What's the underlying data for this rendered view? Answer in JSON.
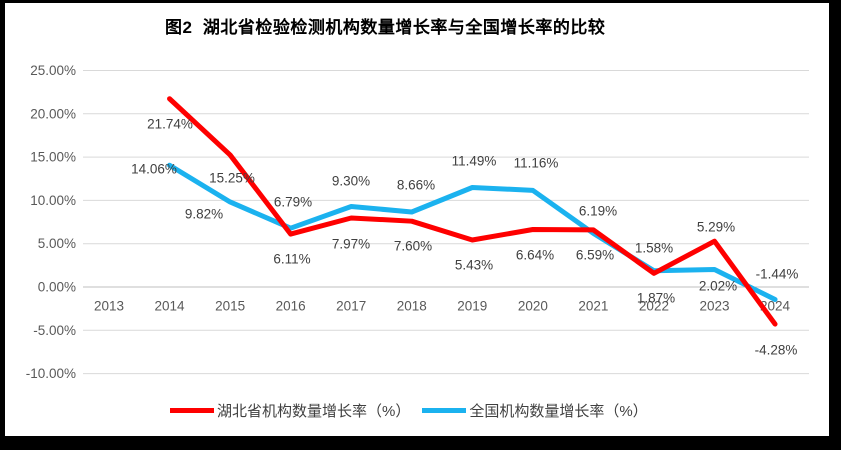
{
  "title": "图2  湖北省检验检测机构数量增长率与全国增长率的比较",
  "chart_data": {
    "type": "line",
    "categories": [
      "2013",
      "2014",
      "2015",
      "2016",
      "2017",
      "2018",
      "2019",
      "2020",
      "2021",
      "2022",
      "2023",
      "2024"
    ],
    "series": [
      {
        "name": "湖北省机构数量增长率（%）",
        "color": "#FE0000",
        "values": [
          null,
          21.74,
          15.25,
          6.11,
          7.97,
          7.6,
          5.43,
          6.64,
          6.59,
          1.58,
          5.29,
          -4.28
        ],
        "data_labels": [
          "21.74%",
          "15.25%",
          "6.11%",
          "7.97%",
          "7.60%",
          "5.43%",
          "6.64%",
          "6.59%",
          "1.58%",
          "5.29%",
          "-4.28%"
        ]
      },
      {
        "name": "全国机构数量增长率（%）",
        "color": "#1BB2EF",
        "values": [
          null,
          14.06,
          9.82,
          6.79,
          9.3,
          8.66,
          11.49,
          11.16,
          6.19,
          1.87,
          2.02,
          -1.44
        ],
        "data_labels": [
          "14.06%",
          "9.82%",
          "6.79%",
          "9.30%",
          "8.66%",
          "11.49%",
          "11.16%",
          "6.19%",
          "1.87%",
          "2.02%",
          "-1.44%"
        ]
      }
    ],
    "y_axis": {
      "min": -10,
      "max": 25,
      "step": 5,
      "tick_labels": [
        "25.00%",
        "20.00%",
        "15.00%",
        "10.00%",
        "5.00%",
        "0.00%",
        "-5.00%",
        "-10.00%"
      ]
    },
    "grid": true,
    "legend_position": "bottom"
  },
  "colors": {
    "grid_line": "#D9D9D9",
    "axis_line": "#BFBFBF",
    "data_label_text": "#404040",
    "axis_text": "#595959",
    "frame_border": "#000000",
    "background": "#FFFFFF"
  }
}
